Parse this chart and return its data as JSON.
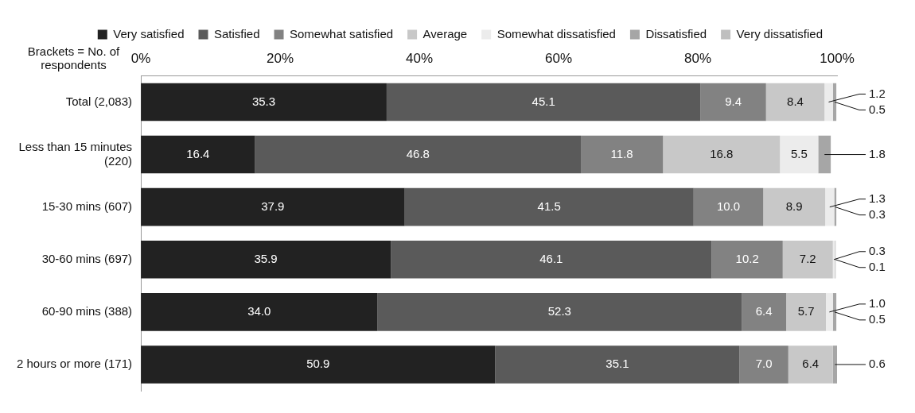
{
  "chart_data": {
    "type": "bar",
    "orientation": "horizontal",
    "stacked": true,
    "ylabel": "Brackets = No. of respondents",
    "categories": [
      "Total (2,083)",
      "Less than 15 minutes (220)",
      "15-30 mins (607)",
      "30-60 mins (697)",
      "60-90 mins (388)",
      "2 hours or more (171)"
    ],
    "series": [
      {
        "name": "Very satisfied",
        "color": "#222222",
        "values": [
          35.3,
          16.4,
          37.9,
          35.9,
          34.0,
          50.9
        ],
        "value_labels": [
          "35.3",
          "16.4",
          "37.9",
          "35.9",
          "34.0",
          "50.9"
        ]
      },
      {
        "name": "Satisfied",
        "color": "#5a5a5a",
        "values": [
          45.1,
          46.8,
          41.5,
          46.1,
          52.3,
          35.1
        ],
        "value_labels": [
          "45.1",
          "46.8",
          "41.5",
          "46.1",
          "52.3",
          "35.1"
        ]
      },
      {
        "name": "Somewhat satisfied",
        "color": "#828282",
        "values": [
          9.4,
          11.8,
          10.0,
          10.2,
          6.4,
          7.0
        ],
        "value_labels": [
          "9.4",
          "11.8",
          "10.0",
          "10.2",
          "6.4",
          "7.0"
        ]
      },
      {
        "name": "Average",
        "color": "#c8c8c8",
        "values": [
          8.4,
          16.8,
          8.9,
          7.2,
          5.7,
          6.4
        ],
        "value_labels": [
          "8.4",
          "16.8",
          "8.9",
          "7.2",
          "5.7",
          "6.4"
        ]
      },
      {
        "name": "Somewhat dissatisfied",
        "color": "#ececec",
        "values": [
          1.2,
          5.5,
          1.3,
          0.3,
          1.0,
          null
        ],
        "value_labels": [
          "1.2",
          "5.5",
          "1.3",
          "0.3",
          "1.0",
          null
        ]
      },
      {
        "name": "Dissatisfied",
        "color": "#a6a6a6",
        "values": [
          0.5,
          1.8,
          0.3,
          0.1,
          0.5,
          0.6
        ],
        "value_labels": [
          "0.5",
          "1.8",
          "0.3",
          "0.1",
          "0.5",
          "0.6"
        ]
      },
      {
        "name": "Very dissatisfied",
        "color": "#bfbfbf",
        "values": [
          null,
          null,
          null,
          null,
          null,
          null
        ]
      }
    ],
    "xlim": [
      0,
      100
    ],
    "xticks": [
      {
        "value": 0,
        "label": "0%"
      },
      {
        "value": 20,
        "label": "20%"
      },
      {
        "value": 40,
        "label": "40%"
      },
      {
        "value": 60,
        "label": "60%"
      },
      {
        "value": 80,
        "label": "80%"
      },
      {
        "value": 100,
        "label": "100%"
      }
    ],
    "grid": false,
    "legend": "top"
  }
}
